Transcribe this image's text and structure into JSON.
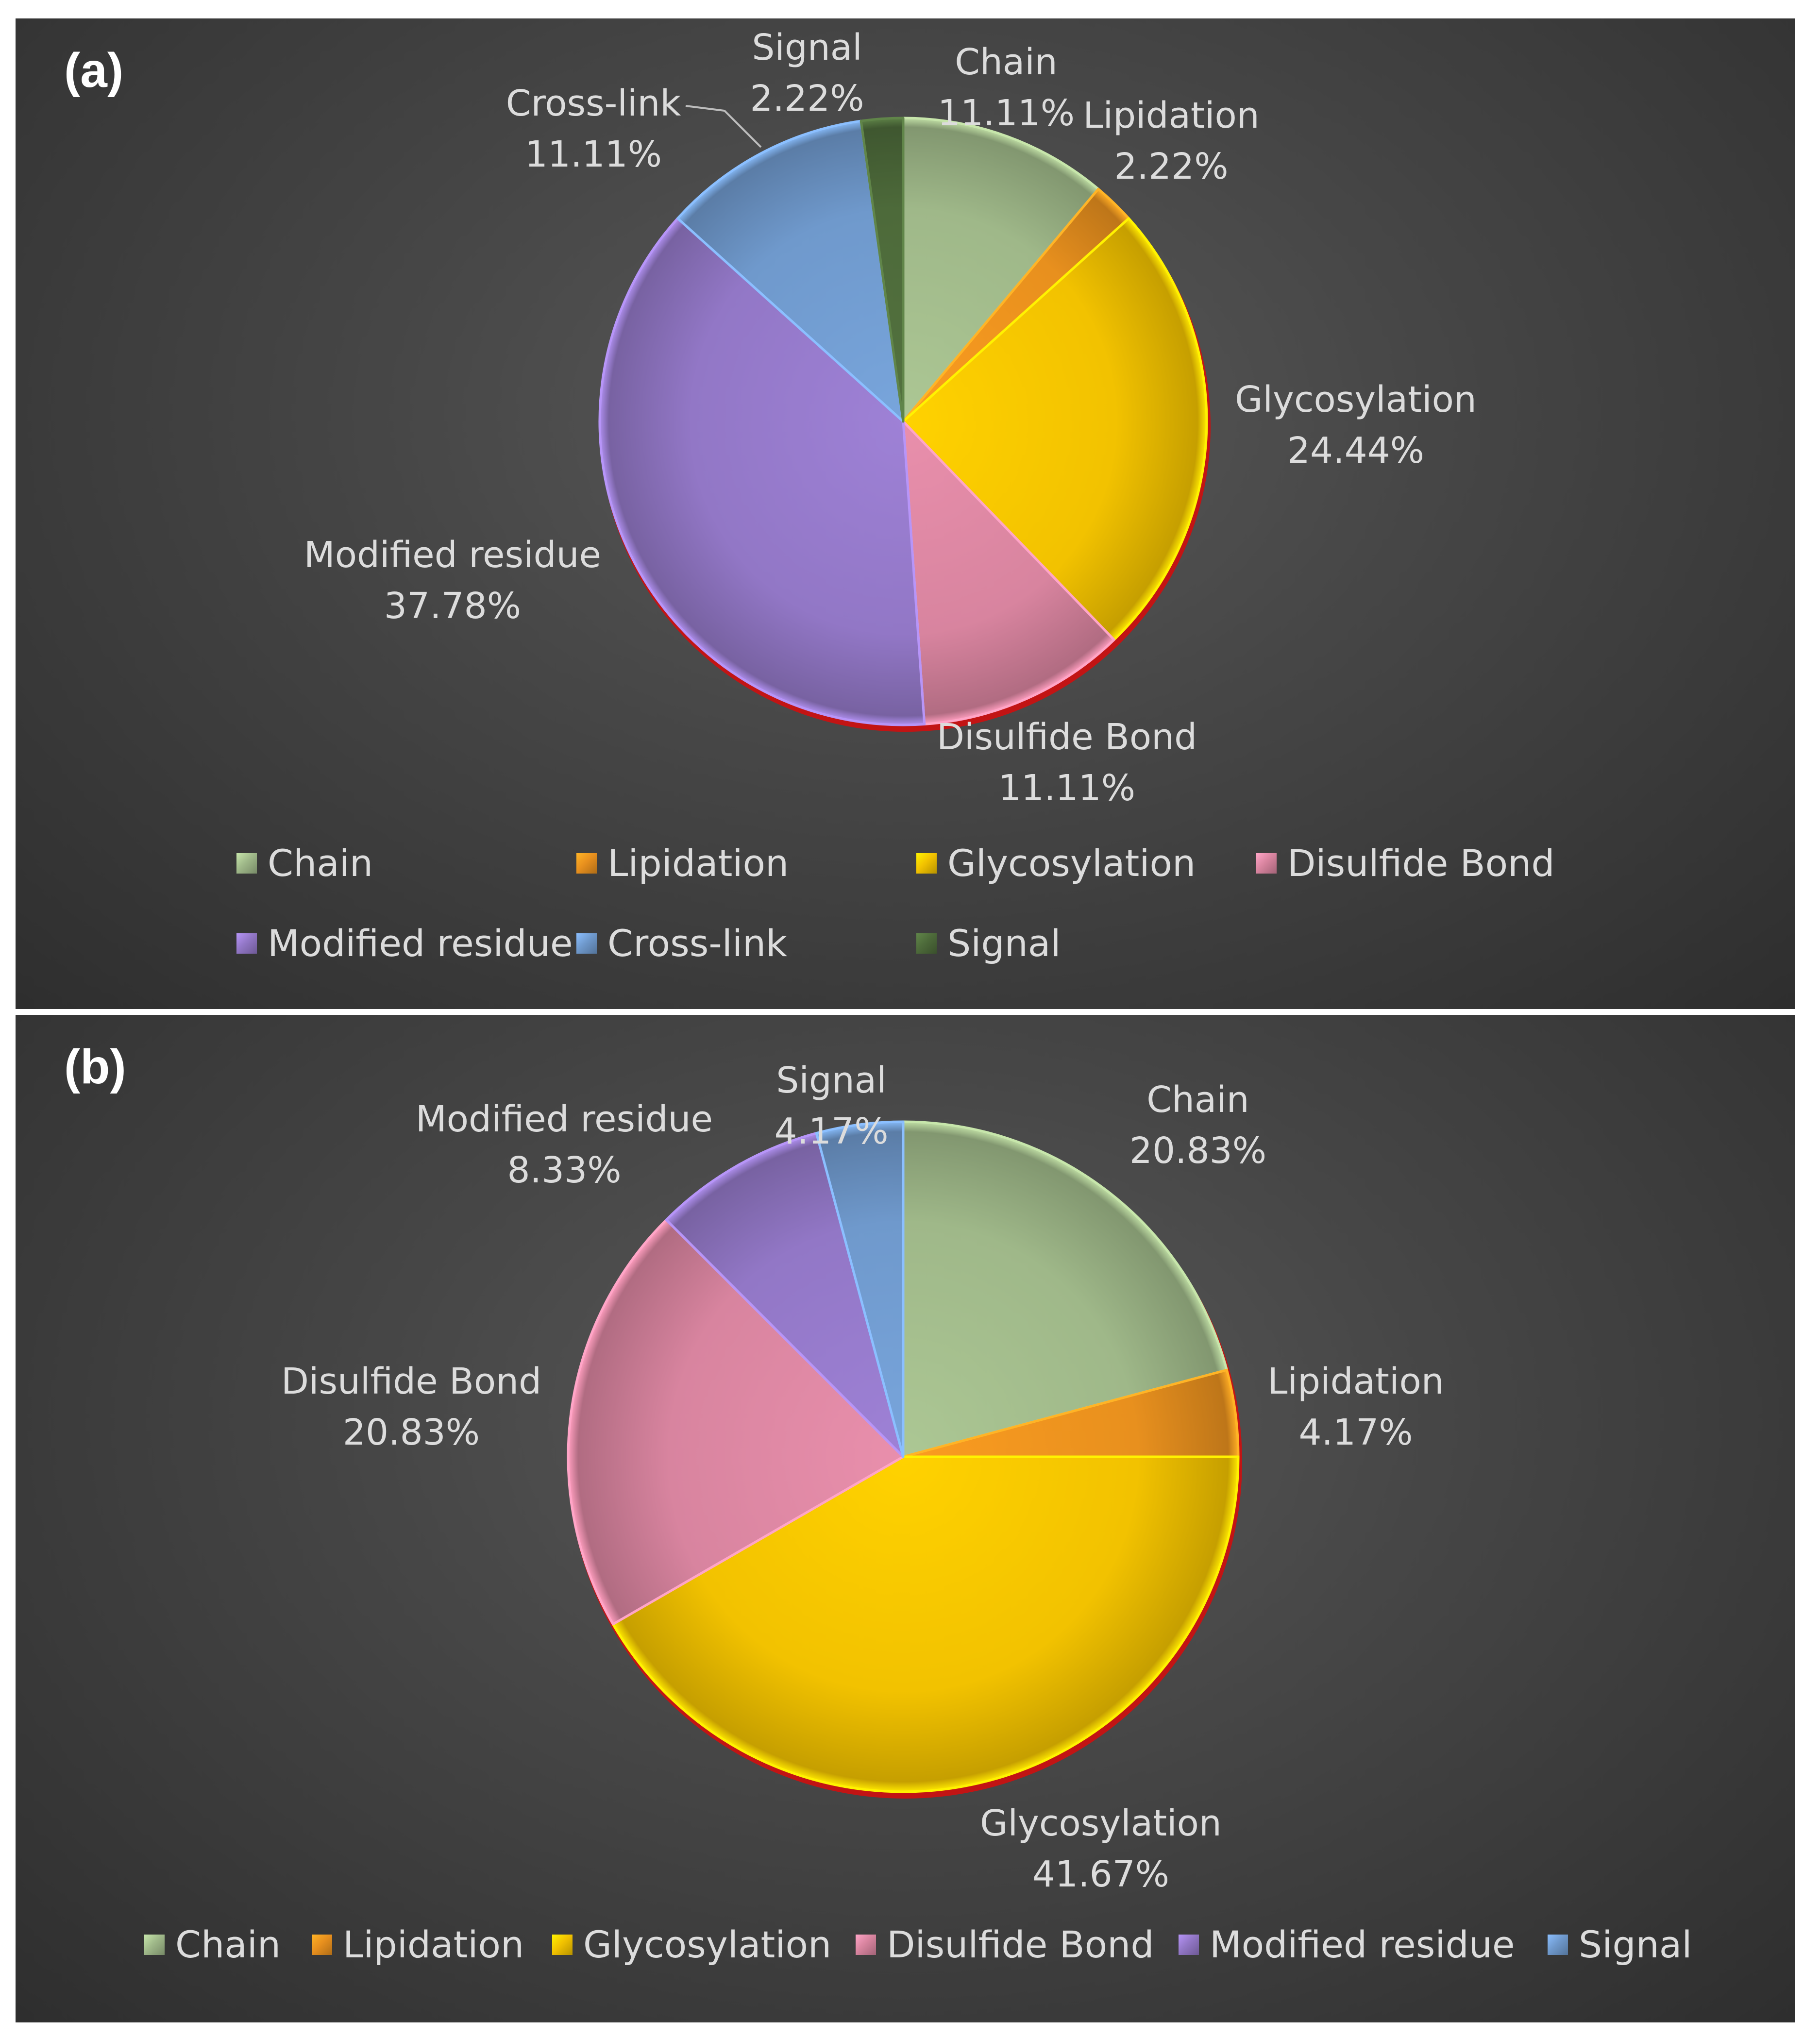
{
  "chart_data": [
    {
      "type": "pie",
      "panel_label": "(a)",
      "categories": [
        "Chain",
        "Lipidation",
        "Glycosylation",
        "Disulfide Bond",
        "Modified residue",
        "Cross-link",
        "Signal"
      ],
      "values": [
        11.11,
        2.22,
        24.44,
        11.11,
        37.78,
        11.11,
        2.22
      ],
      "value_labels": [
        "11.11%",
        "2.22%",
        "24.44%",
        "11.11%",
        "37.78%",
        "11.11%",
        "2.22%"
      ],
      "colors": [
        "#9fb889",
        "#e8901e",
        "#f2c200",
        "#d8849f",
        "#9277c6",
        "#6f99cc",
        "#4d6a3a"
      ],
      "legend": [
        "Chain",
        "Lipidation",
        "Glycosylation",
        "Disulfide Bond",
        "Modified residue",
        "Cross-link",
        "Signal"
      ],
      "legend_position": "bottom"
    },
    {
      "type": "pie",
      "panel_label": "(b)",
      "categories": [
        "Chain",
        "Lipidation",
        "Glycosylation",
        "Disulfide Bond",
        "Modified residue",
        "Signal"
      ],
      "values": [
        20.83,
        4.17,
        41.67,
        20.83,
        8.33,
        4.17
      ],
      "value_labels": [
        "20.83%",
        "4.17%",
        "41.67%",
        "20.83%",
        "8.33%",
        "4.17%"
      ],
      "colors": [
        "#9fb889",
        "#e8901e",
        "#f2c200",
        "#d8849f",
        "#9277c6",
        "#6f99cc"
      ],
      "legend": [
        "Chain",
        "Lipidation",
        "Glycosylation",
        "Disulfide Bond",
        "Modified residue",
        "Signal"
      ],
      "legend_position": "bottom"
    }
  ]
}
